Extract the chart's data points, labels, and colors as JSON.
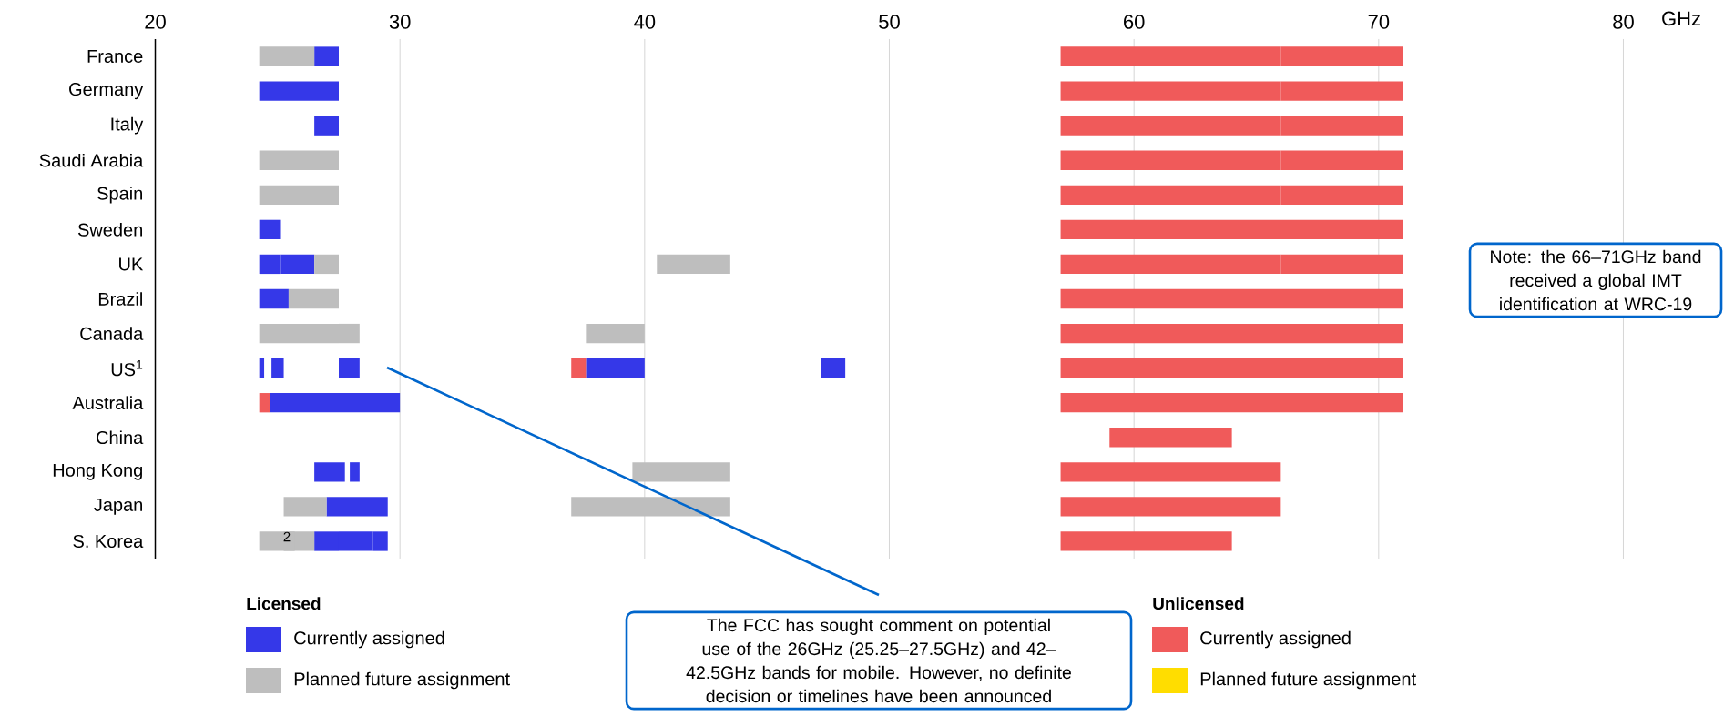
{
  "chart_data": {
    "type": "bar",
    "orientation": "horizontal",
    "xlabel": "GHz",
    "xlim": [
      20,
      80
    ],
    "xticks": [
      20,
      30,
      40,
      50,
      60,
      70,
      80
    ],
    "grid": "x",
    "legend": "bottom",
    "categories": [
      "France",
      "Germany",
      "Italy",
      "Saudi Arabia",
      "Spain",
      "Sweden",
      "UK",
      "Brazil",
      "Canada",
      "US$^{1}$",
      "Australia",
      "China",
      "Hong Kong",
      "Japan",
      "S. Korea"
    ],
    "series": [
      {
        "name": "Currently assigned",
        "color": "#3538e8",
        "base": [
          26.5,
          24.25,
          26.5,
          null,
          null,
          24.25,
          24.25,
          24.25,
          null,
          24.25,
          24.7,
          null,
          26.5,
          27,
          26.5
        ],
        "values": [
          1,
          3.25,
          1,
          null,
          null,
          0.85,
          0.85,
          1.2,
          null,
          0.2,
          5.3,
          null,
          1.25,
          2.5,
          1
        ]
      },
      {
        "color": "#3538e8",
        "base": [
          null,
          null,
          null,
          null,
          null,
          null,
          25.1,
          null,
          null,
          24.75,
          null,
          null,
          27.95,
          null,
          27.5
        ],
        "values": [
          null,
          null,
          null,
          null,
          null,
          null,
          1.4,
          null,
          null,
          0.5,
          null,
          null,
          0.4,
          null,
          1.4
        ]
      },
      {
        "color": "#3538e8",
        "base": [
          null,
          null,
          null,
          null,
          null,
          null,
          null,
          null,
          null,
          27.5,
          null,
          null,
          null,
          null,
          28.9
        ],
        "values": [
          null,
          null,
          null,
          null,
          null,
          null,
          null,
          null,
          null,
          0.85,
          null,
          null,
          null,
          null,
          0.6
        ]
      },
      {
        "color": "#3538e8",
        "base": [
          null,
          null,
          null,
          null,
          null,
          null,
          null,
          null,
          null,
          37.6,
          null,
          null,
          null,
          null,
          null
        ],
        "values": [
          null,
          null,
          null,
          null,
          null,
          null,
          null,
          null,
          null,
          2.4,
          null,
          null,
          null,
          null,
          null
        ]
      },
      {
        "color": "#3538e8",
        "base": [
          null,
          null,
          null,
          null,
          null,
          null,
          null,
          null,
          null,
          47.2,
          null,
          null,
          null,
          null,
          null
        ],
        "values": [
          null,
          null,
          null,
          null,
          null,
          null,
          null,
          null,
          null,
          1.0,
          null,
          null,
          null,
          null,
          null
        ]
      },
      {
        "name": "Planned future assignment",
        "color": "#bebebe",
        "base": [
          24.25,
          null,
          null,
          24.25,
          24.25,
          null,
          26.5,
          25.45,
          24.25,
          null,
          null,
          null,
          39.5,
          25.25,
          24.25
        ],
        "values": [
          2.25,
          null,
          null,
          3.25,
          3.25,
          null,
          1,
          2.05,
          3.25,
          null,
          null,
          null,
          4,
          1.75,
          2.25
        ]
      },
      {
        "color": "#bebebe",
        "base": [
          null,
          null,
          null,
          null,
          null,
          null,
          40.5,
          null,
          27.5,
          null,
          null,
          null,
          null,
          37,
          25.25
        ],
        "values": [
          null,
          null,
          null,
          null,
          null,
          null,
          3,
          null,
          0.85,
          null,
          null,
          null,
          null,
          6.5,
          0.45
        ]
      },
      {
        "color": "#bebebe",
        "base": [
          null,
          null,
          null,
          null,
          null,
          null,
          null,
          null,
          37.6,
          null,
          null,
          null,
          null,
          null,
          null
        ],
        "values": [
          null,
          null,
          null,
          null,
          null,
          null,
          null,
          null,
          2.4,
          null,
          null,
          null,
          null,
          null,
          null
        ]
      },
      {
        "name": "Currently assigned",
        "color": "#f05a5a",
        "base": [
          57,
          57,
          57,
          57,
          57,
          57,
          57,
          57,
          57,
          57,
          57,
          59,
          57,
          57,
          57
        ],
        "values": [
          9,
          9,
          9,
          9,
          9,
          14,
          9,
          14,
          14,
          14,
          14,
          5,
          9,
          9,
          7
        ]
      },
      {
        "color": "#f05a5a",
        "base": [
          66,
          66,
          66,
          66,
          66,
          null,
          66,
          null,
          null,
          37,
          24.25,
          null,
          null,
          null,
          null
        ],
        "values": [
          5,
          5,
          5,
          5,
          5,
          null,
          5,
          null,
          null,
          0.6,
          0.45,
          null,
          null,
          null,
          null
        ]
      },
      {
        "name": "Planned future assignment",
        "color": "#ffdd00",
        "base": [
          null,
          null,
          null,
          null,
          null,
          null,
          null,
          null,
          null,
          null,
          null,
          null,
          null,
          null,
          null
        ],
        "values": [
          null,
          null,
          null,
          null,
          null,
          null,
          null,
          null,
          null,
          null,
          null,
          null,
          null,
          null,
          null
        ]
      }
    ],
    "annotations": [
      "Note: the 66–71GHz band received a global IMT identification at WRC-19",
      "The FCC has sought comment on potential use of the 26GHz (25.25–27.5GHz) and 42–42.5GHz bands for mobile. However, no definite decision or timelines have been announced",
      "2",
      "Licensed",
      "Unlicensed"
    ]
  }
}
